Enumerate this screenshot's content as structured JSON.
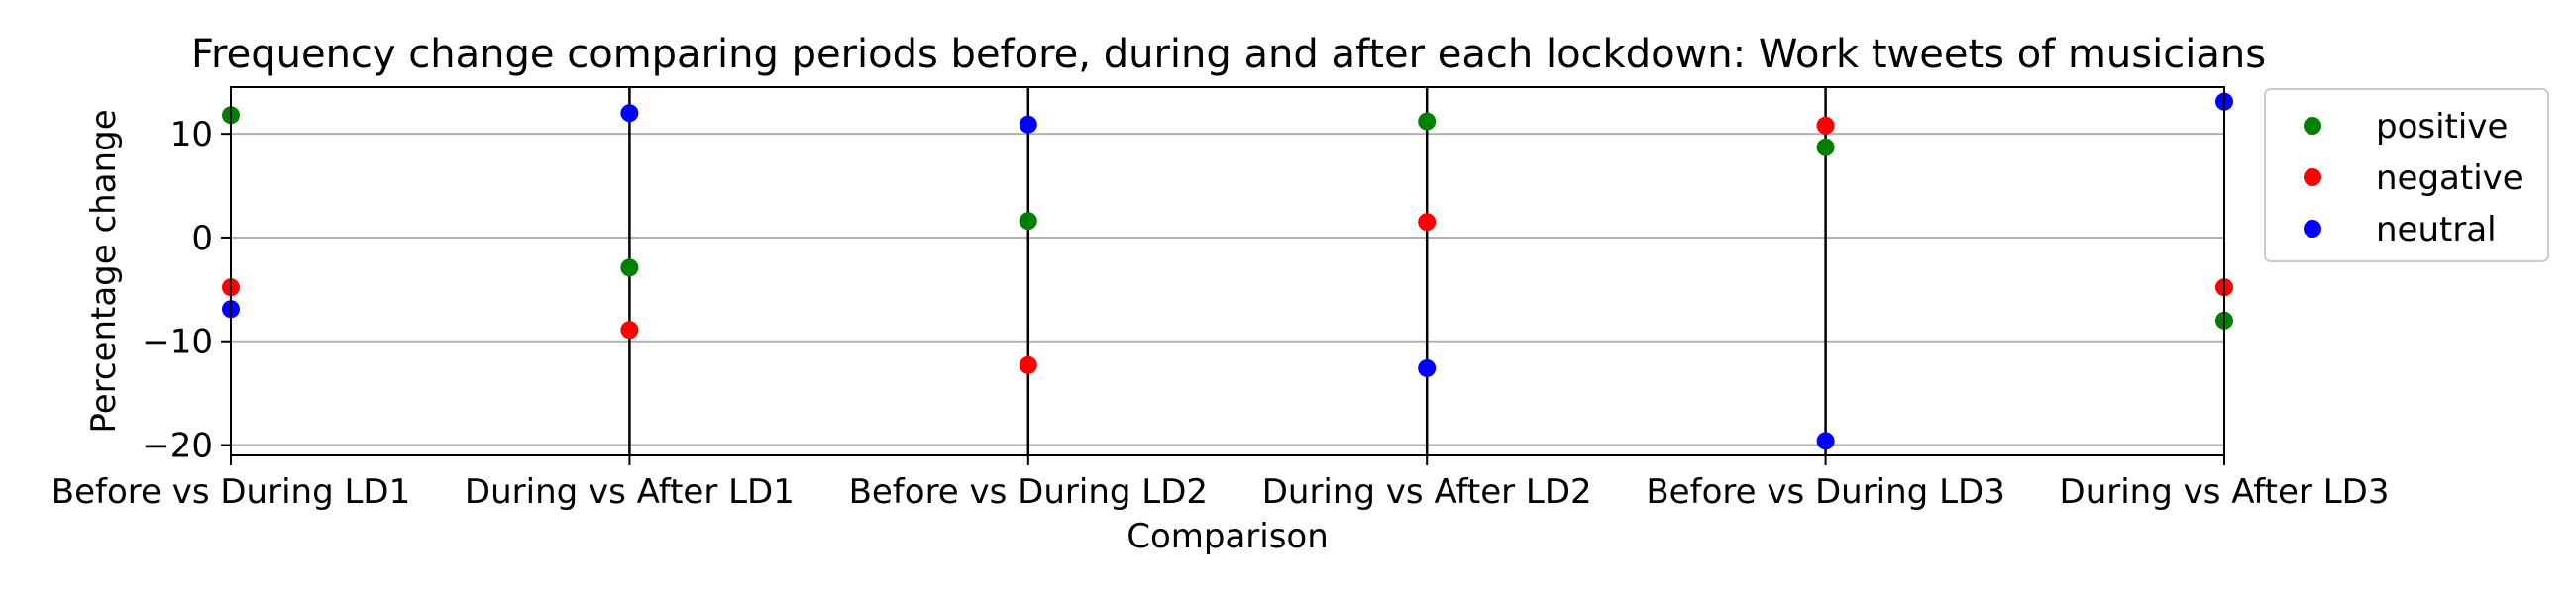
{
  "chart_data": {
    "type": "scatter",
    "title": "Frequency change comparing periods before, during and after each lockdown: Work tweets of musicians",
    "xlabel": "Comparison",
    "ylabel": "Percentage change",
    "categories": [
      "Before vs During LD1",
      "During vs After LD1",
      "Before vs During LD2",
      "During vs After LD2",
      "Before vs During LD3",
      "During vs After LD3"
    ],
    "ylim": [
      -21,
      14.5
    ],
    "yticks": [
      -20,
      -10,
      0,
      10
    ],
    "ytick_labels": [
      "−20",
      "−10",
      "0",
      "10"
    ],
    "grid": "horizontal",
    "vertical_lines_at": [
      "During vs After LD1",
      "Before vs During LD2",
      "During vs After LD2",
      "Before vs During LD3"
    ],
    "legend_position": "outside-right-top",
    "series": [
      {
        "name": "positive",
        "color": "#008000",
        "values": [
          11.8,
          -2.9,
          1.6,
          11.2,
          8.7,
          -8.0
        ]
      },
      {
        "name": "negative",
        "color": "#ff0000",
        "values": [
          -4.8,
          -8.9,
          -12.3,
          1.5,
          10.8,
          -4.8
        ]
      },
      {
        "name": "neutral",
        "color": "#0000ff",
        "values": [
          -6.9,
          12.0,
          10.9,
          -12.6,
          -19.6,
          13.1
        ]
      }
    ]
  }
}
